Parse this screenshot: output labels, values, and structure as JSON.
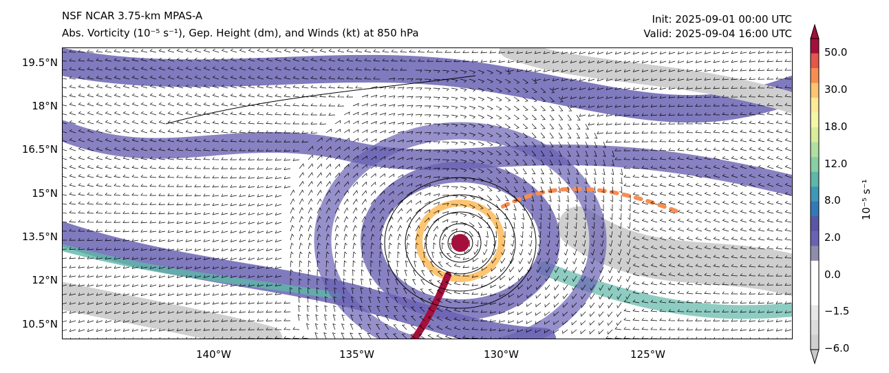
{
  "title_left_1": "NSF NCAR 3.75-km MPAS-A",
  "title_left_2": "Abs. Vorticity (10⁻⁵ s⁻¹), Gep. Height (dm), and Winds (kt) at 850 hPa",
  "title_right_1": "Init: 2025-09-01 00:00 UTC",
  "title_right_2": "Valid: 2025-09-04 16:00 UTC",
  "lat_ticks": [
    "19.5°N",
    "18°N",
    "16.5°N",
    "15°N",
    "13.5°N",
    "12°N",
    "10.5°N"
  ],
  "lon_ticks": [
    "140°W",
    "135°W",
    "130°W",
    "125°W"
  ],
  "colorbar": {
    "unit_label": "10⁻⁵ s⁻¹",
    "tick_labels": [
      "50.0",
      "30.0",
      "18.0",
      "12.0",
      "8.0",
      "2.0",
      "0.0",
      "−1.5",
      "−6.0"
    ],
    "colors_top_to_bottom": [
      "#a50f3c",
      "#e4574a",
      "#f88d52",
      "#fdc571",
      "#feeb9a",
      "#f3f7a8",
      "#d9ed9a",
      "#b0dfa2",
      "#88cfa3",
      "#5eb7a8",
      "#3d98b9",
      "#3478b8",
      "#5a56a6",
      "#6a63b3",
      "#8f8cae",
      "#ffffff",
      "#ffffff",
      "#ffffff",
      "#e8e8e8",
      "#dcdcdc",
      "#cfcfcf"
    ],
    "over_color": "#a50f3c",
    "under_color": "#c8c8c8"
  }
}
